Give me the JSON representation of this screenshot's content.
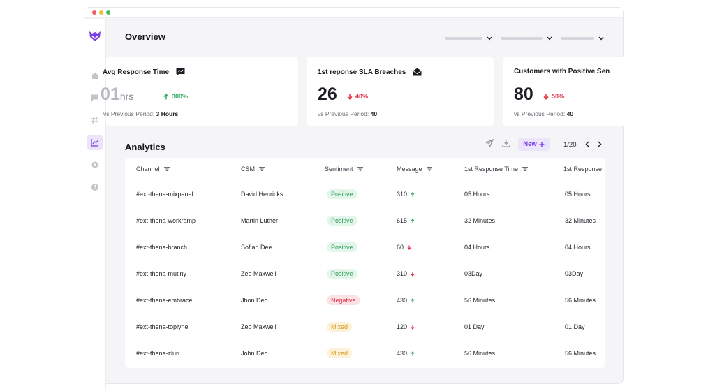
{
  "colors": {
    "accent": "#7b3fe4",
    "up": "#2faa63",
    "down": "#e0283c",
    "window_dots": [
      "#f05a5a",
      "#f5b93a",
      "#3bbf5c"
    ]
  },
  "sidebar": {
    "logo": "thena-logo-icon",
    "items": [
      {
        "icon": "home-icon",
        "active": false
      },
      {
        "icon": "chat-icon",
        "active": false
      },
      {
        "icon": "hash-icon",
        "active": false
      },
      {
        "icon": "chart-icon",
        "active": true
      },
      {
        "icon": "settings-icon",
        "active": false
      },
      {
        "icon": "help-icon",
        "active": false
      }
    ]
  },
  "header": {
    "title": "Overview"
  },
  "cards": [
    {
      "title": "Avg Response Time",
      "icon": "message-icon",
      "value": "01",
      "unit": "hrs",
      "delta": "300%",
      "direction": "up",
      "prev_label": "vs Previous Period:",
      "prev_value": "3 Hours"
    },
    {
      "title": "1st reponse SLA Breaches",
      "icon": "mail-icon",
      "value": "26",
      "unit": "",
      "delta": "40%",
      "direction": "down",
      "prev_label": "vs Previous Period:",
      "prev_value": "40"
    },
    {
      "title": "Customers with Positive Sen",
      "icon": "",
      "value": "80",
      "unit": "",
      "delta": "50%",
      "direction": "down",
      "prev_label": "vs Previous Period:",
      "prev_value": "40"
    }
  ],
  "analytics": {
    "title": "Analytics",
    "new_label": "New",
    "new_icon": "plus-icon",
    "pager": "1/20",
    "columns": [
      "Channel",
      "CSM",
      "Sentiment",
      "Message",
      "1st Response Time",
      "1st Response"
    ],
    "rows": [
      {
        "channel": "#ext-thena-mixpanel",
        "csm": "David Henricks",
        "sentiment": "Positive",
        "kind": "pos",
        "message": "310",
        "trend": "up",
        "resp": "05 Hours",
        "resp2": "05 Hours"
      },
      {
        "channel": "#ext-thena-workramp",
        "csm": "Martin Luther",
        "sentiment": "Positive",
        "kind": "pos",
        "message": "615",
        "trend": "up",
        "resp": "32  Minutes",
        "resp2": "32  Minutes"
      },
      {
        "channel": "#ext-thena-branch",
        "csm": "Sofian Dee",
        "sentiment": "Positive",
        "kind": "pos",
        "message": "60",
        "trend": "down",
        "resp": "04 Hours",
        "resp2": "04 Hours"
      },
      {
        "channel": "#ext-thena-mutiny",
        "csm": "Zeo Maxwell",
        "sentiment": "Positive",
        "kind": "pos",
        "message": "310",
        "trend": "down",
        "resp": "03Day",
        "resp2": "03Day"
      },
      {
        "channel": "#ext-thena-embrace",
        "csm": "Jhon Deo",
        "sentiment": "Negative",
        "kind": "neg",
        "message": "430",
        "trend": "up",
        "resp": "56 Minutes",
        "resp2": "56 Minutes"
      },
      {
        "channel": "#ext-thena-toplyne",
        "csm": "Zeo Maxwell",
        "sentiment": "Mixed",
        "kind": "mix",
        "message": "120",
        "trend": "down",
        "resp": "01 Day",
        "resp2": "01 Day"
      },
      {
        "channel": "#ext-thena-zluri",
        "csm": "John Deo",
        "sentiment": "Mixed",
        "kind": "mix",
        "message": "430",
        "trend": "up",
        "resp": "56 Minutes",
        "resp2": "56 Minutes"
      }
    ]
  }
}
